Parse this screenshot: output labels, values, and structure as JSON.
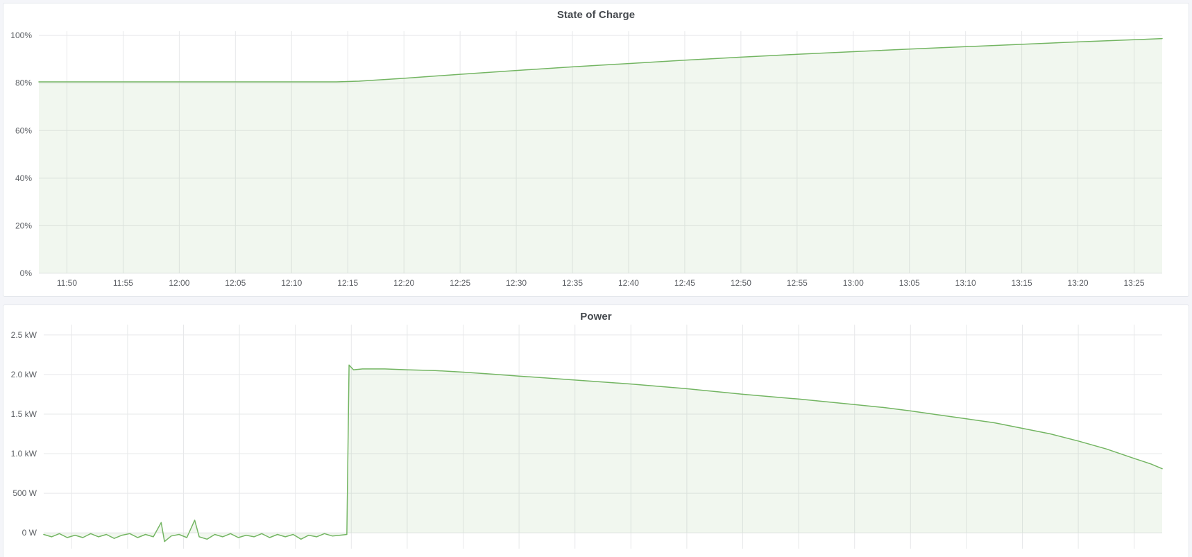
{
  "page": {
    "background_color": "#f4f5f9"
  },
  "theme": {
    "panel_background": "#ffffff",
    "panel_border": "#e4e7ec",
    "grid_color": "#e7e8ea",
    "axis_label_color": "#5b5e63",
    "title_color": "#45494e",
    "series_green": "#73b562",
    "series_fill_opacity": 0.1
  },
  "chart_data": [
    {
      "type": "area",
      "title": "State of Charge",
      "unit": "%",
      "legend": "none",
      "x_axis": {
        "labels_visible": true,
        "tick_labels": [
          "11:50",
          "11:55",
          "12:00",
          "12:05",
          "12:10",
          "12:15",
          "12:20",
          "12:25",
          "12:30",
          "12:35",
          "12:40",
          "12:45",
          "12:50",
          "12:55",
          "13:00",
          "13:05",
          "13:10",
          "13:15",
          "13:20",
          "13:25"
        ],
        "tick_minutes": [
          710,
          715,
          720,
          725,
          730,
          735,
          740,
          745,
          750,
          755,
          760,
          765,
          770,
          775,
          780,
          785,
          790,
          795,
          800,
          805
        ],
        "range_minutes": [
          707.5,
          807.5
        ]
      },
      "y_axis": {
        "labels_visible": true,
        "ylim": [
          0,
          100
        ],
        "ticks": [
          {
            "value": 0,
            "label": "0%"
          },
          {
            "value": 20,
            "label": "20%"
          },
          {
            "value": 40,
            "label": "40%"
          },
          {
            "value": 60,
            "label": "60%"
          },
          {
            "value": 80,
            "label": "80%"
          },
          {
            "value": 100,
            "label": "100%"
          }
        ]
      },
      "series": [
        {
          "name": "State of Charge",
          "color": "#73b562",
          "points": [
            [
              707.5,
              80.5
            ],
            [
              712,
              80.5
            ],
            [
              718,
              80.5
            ],
            [
              724,
              80.5
            ],
            [
              730,
              80.5
            ],
            [
              734,
              80.5
            ],
            [
              736,
              80.8
            ],
            [
              740,
              82.0
            ],
            [
              745,
              83.7
            ],
            [
              750,
              85.3
            ],
            [
              755,
              86.8
            ],
            [
              760,
              88.2
            ],
            [
              765,
              89.6
            ],
            [
              770,
              90.9
            ],
            [
              775,
              92.1
            ],
            [
              780,
              93.2
            ],
            [
              785,
              94.3
            ],
            [
              790,
              95.3
            ],
            [
              795,
              96.3
            ],
            [
              800,
              97.3
            ],
            [
              805,
              98.2
            ],
            [
              807.5,
              98.7
            ]
          ]
        }
      ]
    },
    {
      "type": "area",
      "title": "Power",
      "unit": "W",
      "legend": "none",
      "x_axis": {
        "labels_visible": false,
        "tick_labels": [],
        "tick_minutes": [
          710,
          715,
          720,
          725,
          730,
          735,
          740,
          745,
          750,
          755,
          760,
          765,
          770,
          775,
          780,
          785,
          790,
          795,
          800,
          805
        ],
        "range_minutes": [
          707.5,
          807.5
        ]
      },
      "y_axis": {
        "labels_visible": true,
        "ylim": [
          0,
          2.5
        ],
        "ticks": [
          {
            "value": 0,
            "label": "0 W"
          },
          {
            "value": 0.5,
            "label": "500 W"
          },
          {
            "value": 1,
            "label": "1.0 kW"
          },
          {
            "value": 1.5,
            "label": "1.5 kW"
          },
          {
            "value": 2,
            "label": "2.0 kW"
          },
          {
            "value": 2.5,
            "label": "2.5 kW"
          }
        ]
      },
      "series": [
        {
          "name": "Power",
          "color": "#73b562",
          "points": [
            [
              707.5,
              -0.02
            ],
            [
              708.2,
              -0.05
            ],
            [
              708.9,
              -0.01
            ],
            [
              709.6,
              -0.06
            ],
            [
              710.3,
              -0.03
            ],
            [
              711.0,
              -0.06
            ],
            [
              711.7,
              -0.01
            ],
            [
              712.4,
              -0.05
            ],
            [
              713.1,
              -0.02
            ],
            [
              713.8,
              -0.07
            ],
            [
              714.5,
              -0.03
            ],
            [
              715.2,
              -0.01
            ],
            [
              715.9,
              -0.06
            ],
            [
              716.6,
              -0.02
            ],
            [
              717.3,
              -0.05
            ],
            [
              718.0,
              0.13
            ],
            [
              718.3,
              -0.11
            ],
            [
              718.9,
              -0.04
            ],
            [
              719.6,
              -0.02
            ],
            [
              720.3,
              -0.06
            ],
            [
              721.0,
              0.16
            ],
            [
              721.4,
              -0.05
            ],
            [
              722.1,
              -0.08
            ],
            [
              722.8,
              -0.02
            ],
            [
              723.5,
              -0.05
            ],
            [
              724.2,
              -0.01
            ],
            [
              724.9,
              -0.06
            ],
            [
              725.6,
              -0.03
            ],
            [
              726.3,
              -0.05
            ],
            [
              727.0,
              -0.01
            ],
            [
              727.7,
              -0.06
            ],
            [
              728.4,
              -0.02
            ],
            [
              729.1,
              -0.05
            ],
            [
              729.8,
              -0.02
            ],
            [
              730.5,
              -0.08
            ],
            [
              731.2,
              -0.03
            ],
            [
              731.9,
              -0.05
            ],
            [
              732.6,
              -0.01
            ],
            [
              733.3,
              -0.04
            ],
            [
              734.0,
              -0.03
            ],
            [
              734.6,
              -0.02
            ],
            [
              734.8,
              2.12
            ],
            [
              735.2,
              2.06
            ],
            [
              736.0,
              2.07
            ],
            [
              738.0,
              2.07
            ],
            [
              740,
              2.06
            ],
            [
              742.5,
              2.05
            ],
            [
              745,
              2.03
            ],
            [
              747.5,
              2.005
            ],
            [
              750,
              1.98
            ],
            [
              752.5,
              1.955
            ],
            [
              755,
              1.93
            ],
            [
              757.5,
              1.905
            ],
            [
              760,
              1.88
            ],
            [
              762.5,
              1.85
            ],
            [
              765,
              1.82
            ],
            [
              767.5,
              1.785
            ],
            [
              770,
              1.75
            ],
            [
              772.5,
              1.72
            ],
            [
              775,
              1.69
            ],
            [
              777.5,
              1.655
            ],
            [
              780,
              1.62
            ],
            [
              782.5,
              1.585
            ],
            [
              785,
              1.54
            ],
            [
              787.5,
              1.49
            ],
            [
              790,
              1.44
            ],
            [
              792.5,
              1.39
            ],
            [
              795,
              1.32
            ],
            [
              797.5,
              1.25
            ],
            [
              800,
              1.16
            ],
            [
              802.5,
              1.06
            ],
            [
              805,
              0.94
            ],
            [
              806.5,
              0.87
            ],
            [
              807.5,
              0.81
            ]
          ]
        }
      ]
    }
  ]
}
